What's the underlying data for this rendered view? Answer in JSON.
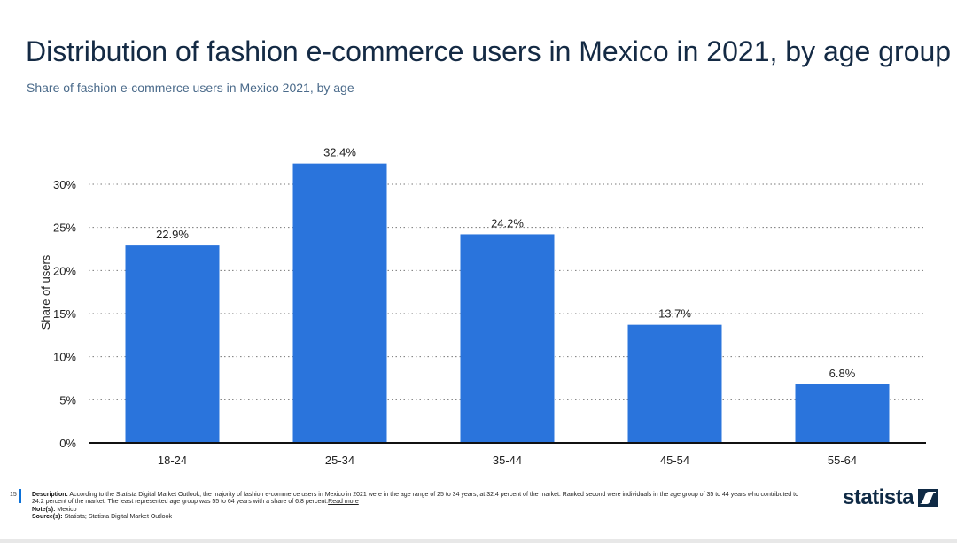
{
  "header": {
    "title": "Distribution of fashion e-commerce users in Mexico in 2021, by age group",
    "subtitle": "Share of fashion e-commerce users in Mexico 2021, by age"
  },
  "footer": {
    "page_number": "15",
    "description_label": "Description:",
    "description": "According to the Statista Digital Market Outlook, the majority of fashion e-commerce users in Mexico in 2021 were in the age range of 25 to 34 years, at 32.4 percent of the market. Ranked second were individuals in the age group of 35 to 44 years who contributed to 24.2 percent of the market. The least represented age group was 55 to 64 years with a share of 6.8 percent.",
    "read_more": "Read more",
    "notes_label": "Note(s):",
    "notes": "Mexico",
    "sources_label": "Source(s):",
    "sources": "Statista; Statista Digital Market Outlook",
    "logo_text": "statista"
  },
  "colors": {
    "bar": "#2a74dc",
    "axis": "#111111",
    "grid": "#777777"
  },
  "chart_data": {
    "type": "bar",
    "title": "Distribution of fashion e-commerce users in Mexico in 2021, by age group",
    "xlabel": "",
    "ylabel": "Share of users",
    "categories": [
      "18-24",
      "25-34",
      "35-44",
      "45-54",
      "55-64"
    ],
    "values": [
      22.9,
      32.4,
      24.2,
      13.7,
      6.8
    ],
    "data_labels": [
      "22.9%",
      "32.4%",
      "24.2%",
      "13.7%",
      "6.8%"
    ],
    "yticks": [
      0,
      5,
      10,
      15,
      20,
      25,
      30
    ],
    "ytick_labels": [
      "0%",
      "5%",
      "10%",
      "15%",
      "20%",
      "25%",
      "30%"
    ],
    "ylim": [
      0,
      30
    ],
    "grid": true
  }
}
